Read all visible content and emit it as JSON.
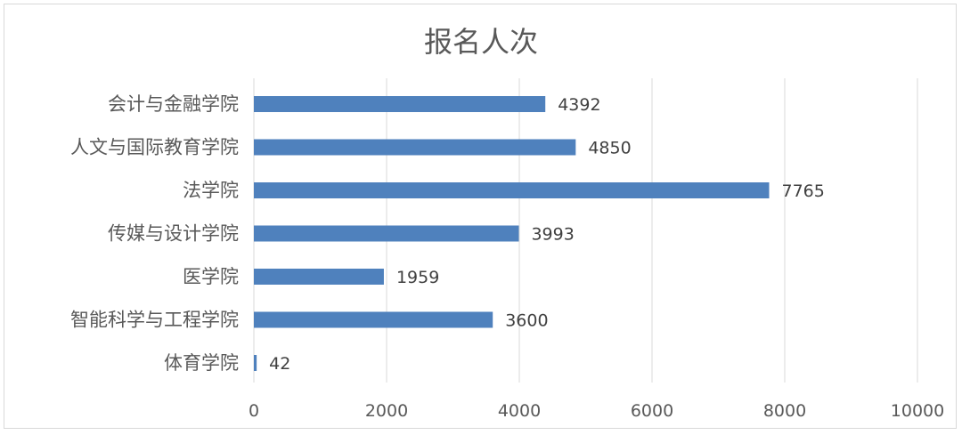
{
  "chart_data": {
    "type": "bar",
    "orientation": "horizontal",
    "title": "报名人次",
    "categories": [
      "会计与金融学院",
      "人文与国际教育学院",
      "法学院",
      "传媒与设计学院",
      "医学院",
      "智能科学与工程学院",
      "体育学院"
    ],
    "values": [
      4392,
      4850,
      7765,
      3993,
      1959,
      3600,
      42
    ],
    "value_labels": [
      "4392",
      "4850",
      "7765",
      "3993",
      "1959",
      "3600",
      "42"
    ],
    "xlim": [
      0,
      10000
    ],
    "x_ticks": [
      0,
      2000,
      4000,
      6000,
      8000,
      10000
    ],
    "x_tick_labels": [
      "0",
      "2000",
      "4000",
      "6000",
      "8000",
      "10000"
    ],
    "grid": "vertical",
    "bar_color": "#4f81bd",
    "grid_color": "#d9d9d9",
    "legend": "none"
  }
}
